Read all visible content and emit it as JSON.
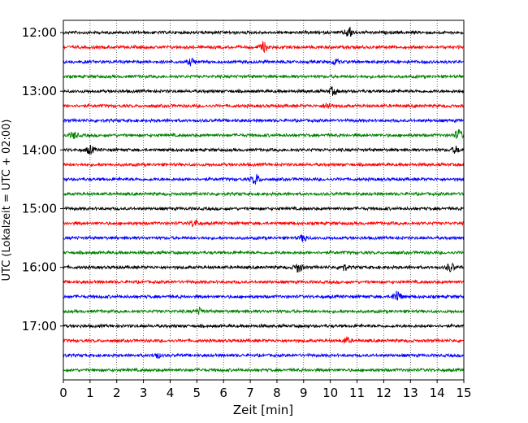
{
  "chart_data": {
    "type": "line",
    "title": "",
    "xlabel": "Zeit  [min]",
    "ylabel": "UTC (Lokalzeit = UTC + 02:00)",
    "xlim": [
      0,
      15
    ],
    "x_ticks": [
      "0",
      "1",
      "2",
      "3",
      "4",
      "5",
      "6",
      "7",
      "8",
      "9",
      "10",
      "11",
      "12",
      "13",
      "14",
      "15"
    ],
    "y_ticks": [
      "12:00",
      "13:00",
      "14:00",
      "15:00",
      "16:00",
      "17:00"
    ],
    "grid": "vertical dotted at each minute",
    "line_start_utc": "12:00",
    "line_interval_min": 15,
    "traces": [
      {
        "start": "12:00",
        "color": "#000000"
      },
      {
        "start": "12:15",
        "color": "#ff0000"
      },
      {
        "start": "12:30",
        "color": "#0000ff"
      },
      {
        "start": "12:45",
        "color": "#008000"
      },
      {
        "start": "13:00",
        "color": "#000000"
      },
      {
        "start": "13:15",
        "color": "#ff0000"
      },
      {
        "start": "13:30",
        "color": "#0000ff"
      },
      {
        "start": "13:45",
        "color": "#008000"
      },
      {
        "start": "14:00",
        "color": "#000000"
      },
      {
        "start": "14:15",
        "color": "#ff0000"
      },
      {
        "start": "14:30",
        "color": "#0000ff"
      },
      {
        "start": "14:45",
        "color": "#008000"
      },
      {
        "start": "15:00",
        "color": "#000000"
      },
      {
        "start": "15:15",
        "color": "#ff0000"
      },
      {
        "start": "15:30",
        "color": "#0000ff"
      },
      {
        "start": "15:45",
        "color": "#008000"
      },
      {
        "start": "16:00",
        "color": "#000000"
      },
      {
        "start": "16:15",
        "color": "#ff0000"
      },
      {
        "start": "16:30",
        "color": "#0000ff"
      },
      {
        "start": "16:45",
        "color": "#008000"
      },
      {
        "start": "17:00",
        "color": "#000000"
      },
      {
        "start": "17:15",
        "color": "#ff0000"
      },
      {
        "start": "17:30",
        "color": "#0000ff"
      },
      {
        "start": "17:45",
        "color": "#008000"
      }
    ],
    "events": [
      {
        "start": "12:00",
        "x": 10.7,
        "amp": 1.0
      },
      {
        "start": "12:15",
        "x": 7.5,
        "amp": 0.9
      },
      {
        "start": "12:30",
        "x": 4.8,
        "amp": 0.6
      },
      {
        "start": "12:30",
        "x": 10.2,
        "amp": 0.5
      },
      {
        "start": "13:00",
        "x": 10.1,
        "amp": 0.7
      },
      {
        "start": "13:15",
        "x": 9.9,
        "amp": 0.6
      },
      {
        "start": "13:45",
        "x": 14.8,
        "amp": 1.0
      },
      {
        "start": "13:45",
        "x": 0.4,
        "amp": 0.6
      },
      {
        "start": "14:00",
        "x": 1.0,
        "amp": 0.8
      },
      {
        "start": "14:00",
        "x": 14.7,
        "amp": 0.6
      },
      {
        "start": "14:30",
        "x": 7.2,
        "amp": 1.0
      },
      {
        "start": "15:15",
        "x": 4.9,
        "amp": 0.7
      },
      {
        "start": "15:30",
        "x": 9.0,
        "amp": 0.6
      },
      {
        "start": "16:00",
        "x": 8.8,
        "amp": 0.9
      },
      {
        "start": "16:00",
        "x": 14.5,
        "amp": 0.8
      },
      {
        "start": "16:00",
        "x": 10.5,
        "amp": 0.6
      },
      {
        "start": "16:30",
        "x": 12.5,
        "amp": 1.2
      },
      {
        "start": "16:45",
        "x": 5.1,
        "amp": 0.6
      },
      {
        "start": "17:15",
        "x": 10.6,
        "amp": 0.6
      },
      {
        "start": "17:30",
        "x": 3.5,
        "amp": 0.5
      }
    ]
  }
}
